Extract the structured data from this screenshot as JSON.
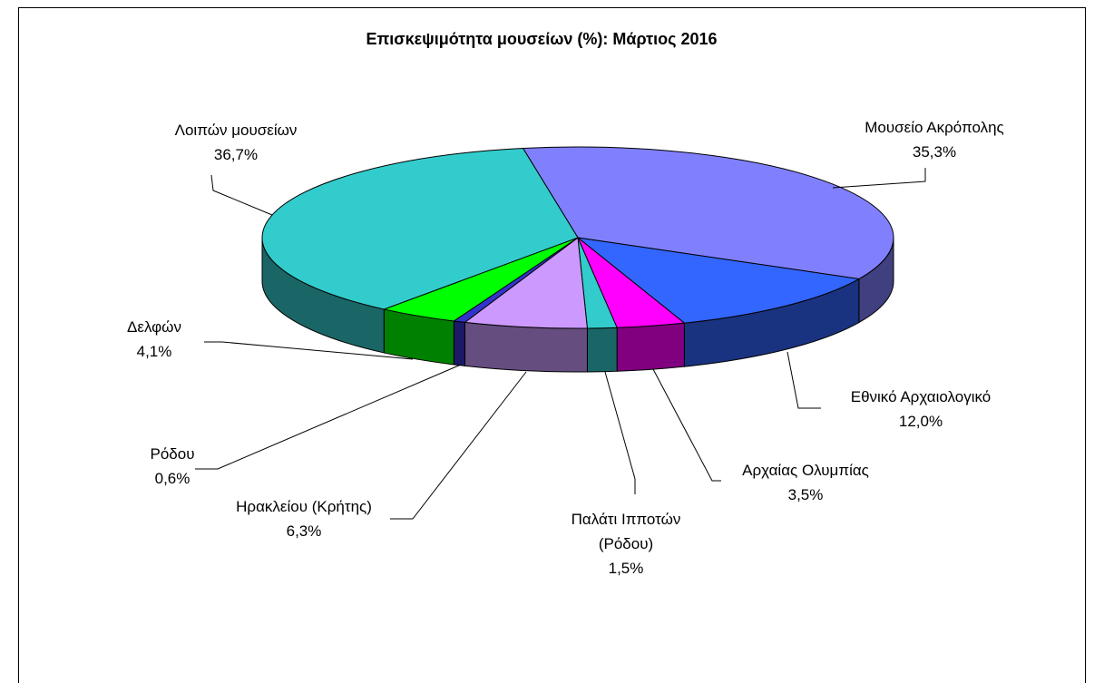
{
  "chart_data": {
    "type": "pie",
    "title": "Επισκεψιμότητα μουσείων (%): Μάρτιος 2016",
    "categories": [
      "Μουσείο Ακρόπολης",
      "Εθνικό Αρχαιολογικό",
      "Αρχαίας Ολυμπίας",
      "Παλάτι Ιπποτών (Ρόδου)",
      "Ηρακλείου (Κρήτης)",
      "Ρόδου",
      "Δελφών",
      "Λοιπών μουσείων"
    ],
    "values": [
      35.3,
      12.0,
      3.5,
      1.5,
      6.3,
      0.6,
      4.1,
      36.7
    ],
    "value_labels": [
      "35,3%",
      "12,0%",
      "3,5%",
      "1,5%",
      "6,3%",
      "0,6%",
      "4,1%",
      "36,7%"
    ],
    "colors": [
      "#8080ff",
      "#3366ff",
      "#ff00ff",
      "#33cccc",
      "#cc99ff",
      "#3333cc",
      "#00ff00",
      "#33cccc"
    ]
  }
}
